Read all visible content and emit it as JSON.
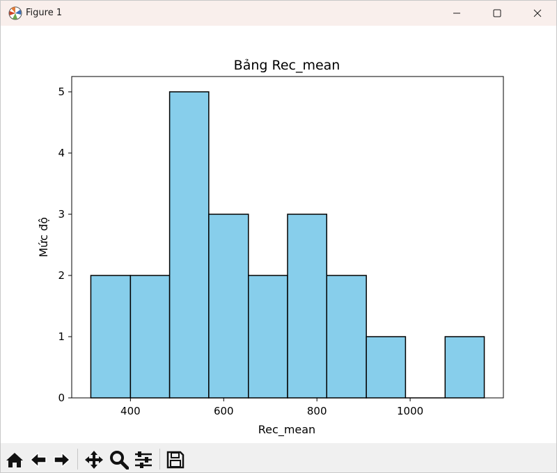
{
  "window": {
    "title": "Figure 1",
    "icons": {
      "app": "matplotlib-icon",
      "minimize": "minimize-icon",
      "maximize": "maximize-icon",
      "close": "close-icon"
    }
  },
  "toolbar": {
    "tools": [
      {
        "name": "home-icon"
      },
      {
        "name": "back-icon"
      },
      {
        "name": "forward-icon"
      },
      {
        "name": "pan-icon"
      },
      {
        "name": "zoom-icon"
      },
      {
        "name": "configure-subplots-icon"
      },
      {
        "name": "save-icon"
      }
    ]
  },
  "chart_data": {
    "type": "bar",
    "subtype": "histogram",
    "title": "Bảng Rec_mean",
    "xlabel": "Rec_mean",
    "ylabel": "Mức độ",
    "bin_edges": [
      315,
      400,
      484,
      568,
      653,
      737,
      821,
      906,
      990,
      1075,
      1159
    ],
    "values": [
      2,
      2,
      5,
      3,
      2,
      3,
      2,
      1,
      0,
      1
    ],
    "xlim": [
      274,
      1200
    ],
    "ylim": [
      0,
      5.25
    ],
    "xticks": [
      400,
      600,
      800,
      1000
    ],
    "yticks": [
      0,
      1,
      2,
      3,
      4,
      5
    ],
    "bar_color": "#87ceeb",
    "edge_color": "#000000",
    "grid": false,
    "legend": false
  }
}
